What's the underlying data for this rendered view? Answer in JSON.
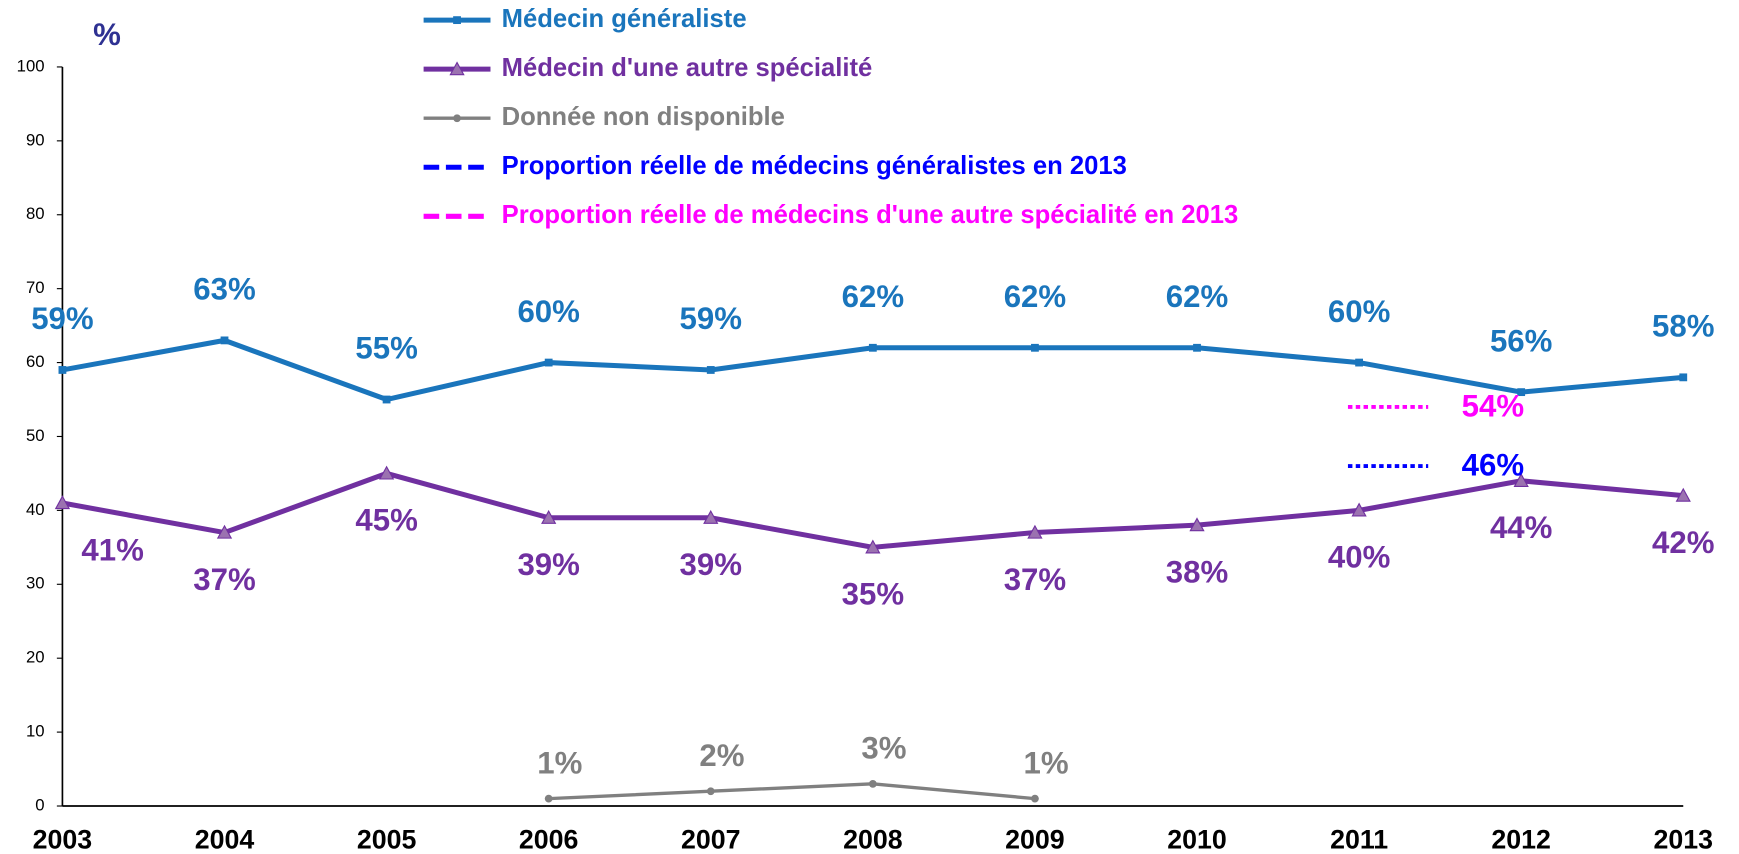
{
  "chart_data": {
    "type": "line",
    "y_label": "%",
    "categories": [
      "2003",
      "2004",
      "2005",
      "2006",
      "2007",
      "2008",
      "2009",
      "2010",
      "2011",
      "2012",
      "2013"
    ],
    "series": [
      {
        "name": "Médecin généraliste",
        "color": "#1a75bc",
        "marker": "square",
        "values": [
          59,
          63,
          55,
          60,
          59,
          62,
          62,
          62,
          60,
          56,
          58
        ],
        "value_labels": [
          "59%",
          "63%",
          "55%",
          "60%",
          "59%",
          "62%",
          "62%",
          "62%",
          "60%",
          "56%",
          "58%"
        ]
      },
      {
        "name": "Médecin d'une autre spécialité",
        "color": "#7030a0",
        "marker": "triangle",
        "values": [
          41,
          37,
          45,
          39,
          39,
          35,
          37,
          38,
          40,
          44,
          42
        ],
        "value_labels": [
          "41%",
          "37%",
          "45%",
          "39%",
          "39%",
          "35%",
          "37%",
          "38%",
          "40%",
          "44%",
          "42%"
        ]
      },
      {
        "name": "Donnée non disponible",
        "color": "#808080",
        "marker": "circle",
        "values": [
          null,
          null,
          null,
          1,
          2,
          3,
          1,
          null,
          null,
          null,
          null
        ],
        "value_labels": [
          null,
          null,
          null,
          "1%",
          "2%",
          "3%",
          "1%",
          null,
          null,
          null,
          null
        ]
      }
    ],
    "reference_lines": [
      {
        "name": "Proportion réelle de médecins généralistes en 2013",
        "color": "#0000ff",
        "value": 46,
        "value_label": "46%"
      },
      {
        "name": "Proportion réelle de médecins d'une autre spécialité en 2013",
        "color": "#ff00ff",
        "value": 54,
        "value_label": "54%"
      }
    ],
    "ylim": [
      0,
      100
    ],
    "yticks": [
      0,
      10,
      20,
      30,
      40,
      50,
      60,
      70,
      80,
      90,
      100
    ]
  }
}
